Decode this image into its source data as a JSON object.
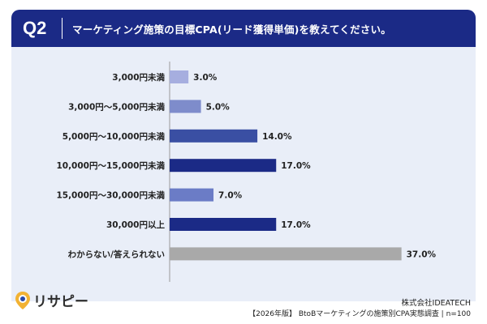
{
  "header": {
    "q_label": "Q2",
    "question": "マーケティング施策の目標CPA(リード獲得単価)を教えてください。"
  },
  "chart_data": {
    "type": "bar",
    "orientation": "horizontal",
    "categories": [
      "3,000円未満",
      "3,000円〜5,000円未満",
      "5,000円〜10,000円未満",
      "10,000円〜15,000円未満",
      "15,000円〜30,000円未満",
      "30,000円以上",
      "わからない/答えられない"
    ],
    "values": [
      3.0,
      5.0,
      14.0,
      17.0,
      7.0,
      17.0,
      37.0
    ],
    "value_labels": [
      "3.0%",
      "5.0%",
      "14.0%",
      "17.0%",
      "7.0%",
      "17.0%",
      "37.0%"
    ],
    "bar_colors": [
      "#a6aedf",
      "#7e8ccb",
      "#3a4fa3",
      "#1b2a86",
      "#6b7cc6",
      "#1b2a86",
      "#a9a9a9"
    ],
    "title": "",
    "xlabel": "",
    "ylabel": "",
    "xlim": [
      0,
      40
    ],
    "grid": false,
    "legend": "none"
  },
  "footer": {
    "logo_text": "リサピー",
    "company": "株式会社IDEATECH",
    "source": "【2026年版】 BtoBマーケティングの施策別CPA実態調査 | n=100"
  },
  "colors": {
    "header_bg": "#1b2a86",
    "panel_bg": "#e9eef8",
    "logo_accent": "#f2b233",
    "logo_accent2": "#2a4aa8"
  }
}
